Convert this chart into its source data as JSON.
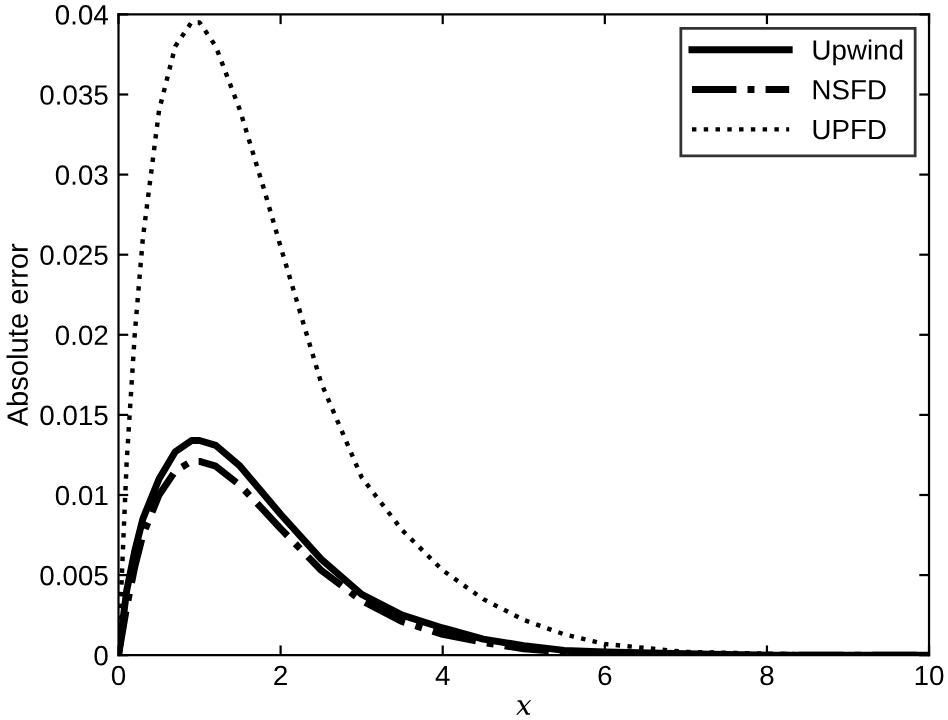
{
  "chart_data": {
    "type": "line",
    "xlabel": "x",
    "ylabel": "Absolute error",
    "xlim": [
      0,
      10
    ],
    "ylim": [
      0,
      0.04
    ],
    "xticks": [
      0,
      2,
      4,
      6,
      8,
      10
    ],
    "yticks": [
      0,
      0.005,
      0.01,
      0.015,
      0.02,
      0.025,
      0.03,
      0.035,
      0.04
    ],
    "grid": false,
    "legend": "top right",
    "x": [
      0,
      0.1,
      0.2,
      0.3,
      0.5,
      0.7,
      0.9,
      1,
      1.2,
      1.5,
      1.8,
      2,
      2.5,
      3,
      3.5,
      4,
      4.5,
      5,
      5.5,
      6,
      7,
      8,
      9,
      10
    ],
    "series": [
      {
        "name": "Upwind",
        "color": "#000000",
        "line_style": "solid",
        "values": [
          0,
          0.004,
          0.0065,
          0.0085,
          0.011,
          0.0127,
          0.0134,
          0.0134,
          0.0131,
          0.0118,
          0.01,
          0.0088,
          0.006,
          0.0038,
          0.0025,
          0.0017,
          0.001,
          0.0006,
          0.0003,
          0.0002,
          0.0001,
          0,
          0,
          0
        ]
      },
      {
        "name": "NSFD",
        "color": "#000000",
        "line_style": "dashdot",
        "values": [
          0,
          0.003,
          0.0055,
          0.0075,
          0.01,
          0.0115,
          0.0121,
          0.0121,
          0.0118,
          0.0106,
          0.009,
          0.0079,
          0.0053,
          0.0034,
          0.0021,
          0.0013,
          0.0008,
          0.0004,
          0.0002,
          0.0001,
          0,
          0,
          0,
          0
        ]
      },
      {
        "name": "UPFD",
        "color": "#000000",
        "line_style": "dotted",
        "values": [
          0,
          0.012,
          0.02,
          0.026,
          0.034,
          0.038,
          0.0395,
          0.0395,
          0.038,
          0.034,
          0.029,
          0.0255,
          0.017,
          0.0111,
          0.0078,
          0.0053,
          0.0035,
          0.0022,
          0.0013,
          0.0007,
          0.0002,
          0.0001,
          0,
          0
        ]
      }
    ]
  }
}
